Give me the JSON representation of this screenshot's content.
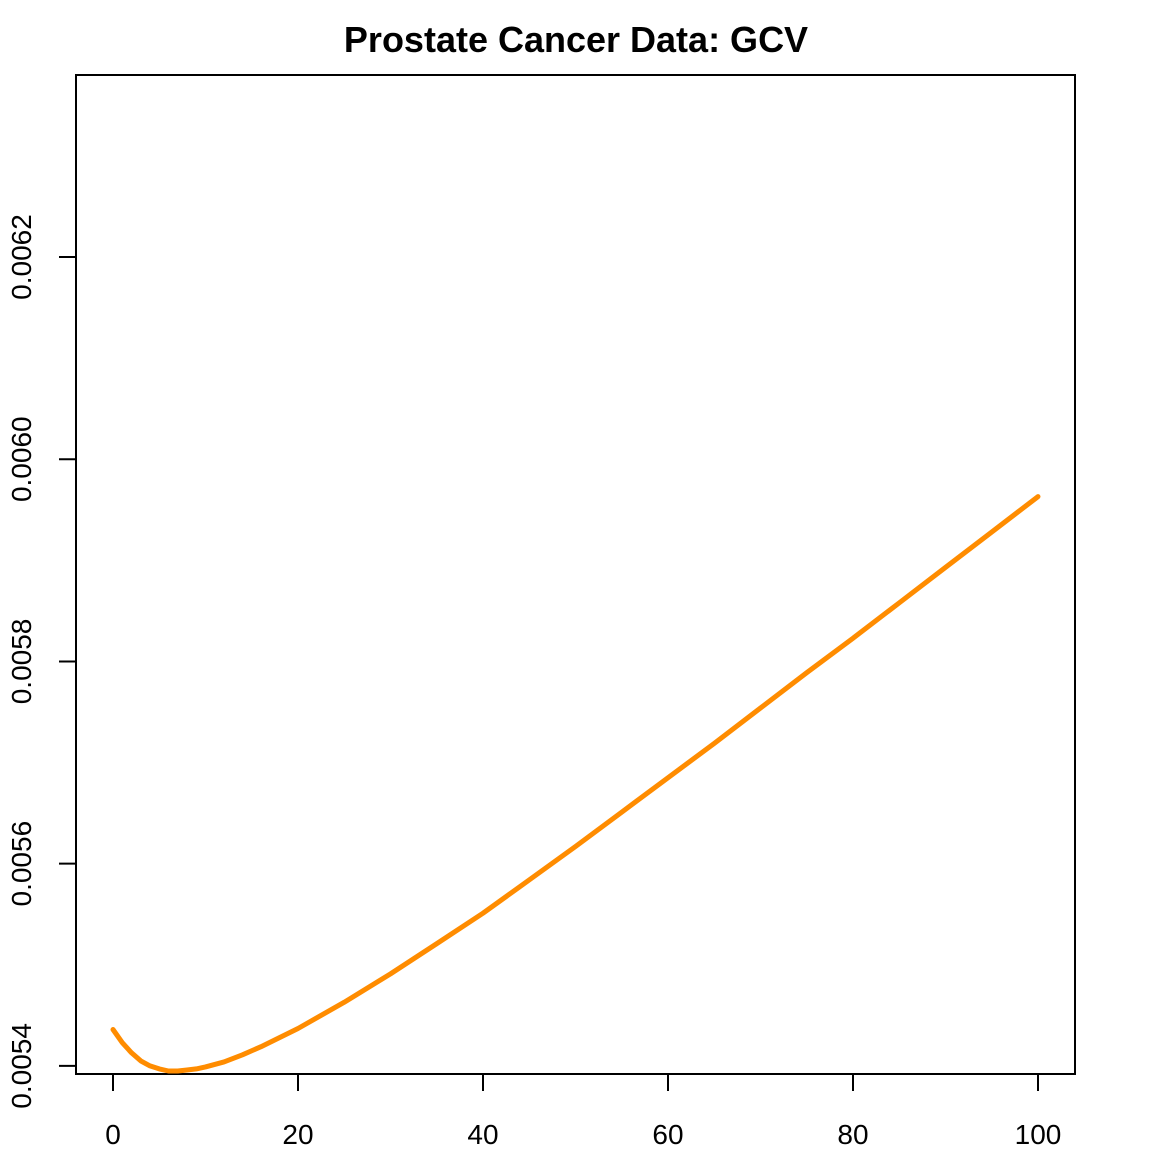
{
  "chart_data": {
    "type": "line",
    "title": "Prostate Cancer Data: GCV",
    "xlabel": "",
    "ylabel": "",
    "xlim": [
      -4,
      104
    ],
    "ylim": [
      0.005392,
      0.00638
    ],
    "x_ticks": [
      0,
      20,
      40,
      60,
      80,
      100
    ],
    "x_tick_labels": [
      "0",
      "20",
      "40",
      "60",
      "80",
      "100"
    ],
    "y_ticks": [
      0.0054,
      0.0056,
      0.0058,
      0.006,
      0.0062
    ],
    "y_tick_labels": [
      "0.0054",
      "0.0056",
      "0.0058",
      "0.0060",
      "0.0062"
    ],
    "grid": false,
    "series": [
      {
        "color": "#ff8c00",
        "x": [
          0,
          1,
          2,
          3,
          4,
          5,
          6,
          7,
          8,
          9,
          10,
          12,
          14,
          16,
          18,
          20,
          25,
          30,
          35,
          40,
          45,
          50,
          55,
          60,
          65,
          70,
          75,
          80,
          85,
          90,
          95,
          100
        ],
        "y": [
          0.005436,
          0.005423,
          0.005413,
          0.005405,
          0.0054,
          0.005397,
          0.005395,
          0.005395,
          0.005396,
          0.005397,
          0.005399,
          0.005404,
          0.005411,
          0.005419,
          0.005428,
          0.005437,
          0.005463,
          0.005491,
          0.005521,
          0.005551,
          0.005584,
          0.005617,
          0.005651,
          0.005685,
          0.005719,
          0.005754,
          0.005789,
          0.005823,
          0.005858,
          0.005893,
          0.005928,
          0.005963
        ]
      }
    ]
  }
}
